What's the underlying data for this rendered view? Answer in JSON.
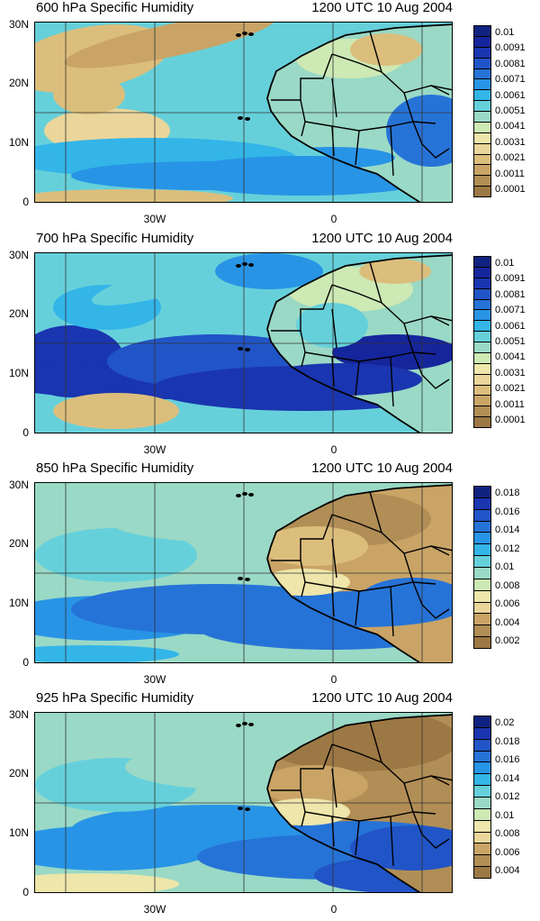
{
  "colors": [
    "#9c7844",
    "#b18e56",
    "#c9a466",
    "#dcbe7c",
    "#ead59a",
    "#eee6aa",
    "#cde9b4",
    "#9ad9c6",
    "#66d0da",
    "#33b5e8",
    "#2894e6",
    "#2673d7",
    "#2154c6",
    "#1a35b0",
    "#15259b",
    "#10227f"
  ],
  "lat_labels": [
    "30N",
    "20N",
    "10N",
    "0"
  ],
  "lon_labels": [
    "30W",
    "0"
  ],
  "panels": [
    {
      "title": "600 hPa Specific Humidity",
      "time": "1200 UTC 10 Aug 2004",
      "levels": [
        "0.01",
        "0.0091",
        "0.0081",
        "0.0071",
        "0.0061",
        "0.0051",
        "0.0041",
        "0.0031",
        "0.0021",
        "0.0011",
        "0.0001"
      ]
    },
    {
      "title": "700 hPa Specific Humidity",
      "time": "1200 UTC 10 Aug 2004",
      "levels": [
        "0.01",
        "0.0091",
        "0.0081",
        "0.0071",
        "0.0061",
        "0.0051",
        "0.0041",
        "0.0031",
        "0.0021",
        "0.0011",
        "0.0001"
      ]
    },
    {
      "title": "850 hPa Specific Humidity",
      "time": "1200 UTC 10 Aug 2004",
      "levels": [
        "0.018",
        "0.016",
        "0.014",
        "0.012",
        "0.01",
        "0.008",
        "0.006",
        "0.004",
        "0.002"
      ]
    },
    {
      "title": "925 hPa Specific Humidity",
      "time": "1200 UTC 10 Aug 2004",
      "levels": [
        "0.02",
        "0.018",
        "0.016",
        "0.014",
        "0.012",
        "0.01",
        "0.008",
        "0.006",
        "0.004"
      ]
    }
  ]
}
